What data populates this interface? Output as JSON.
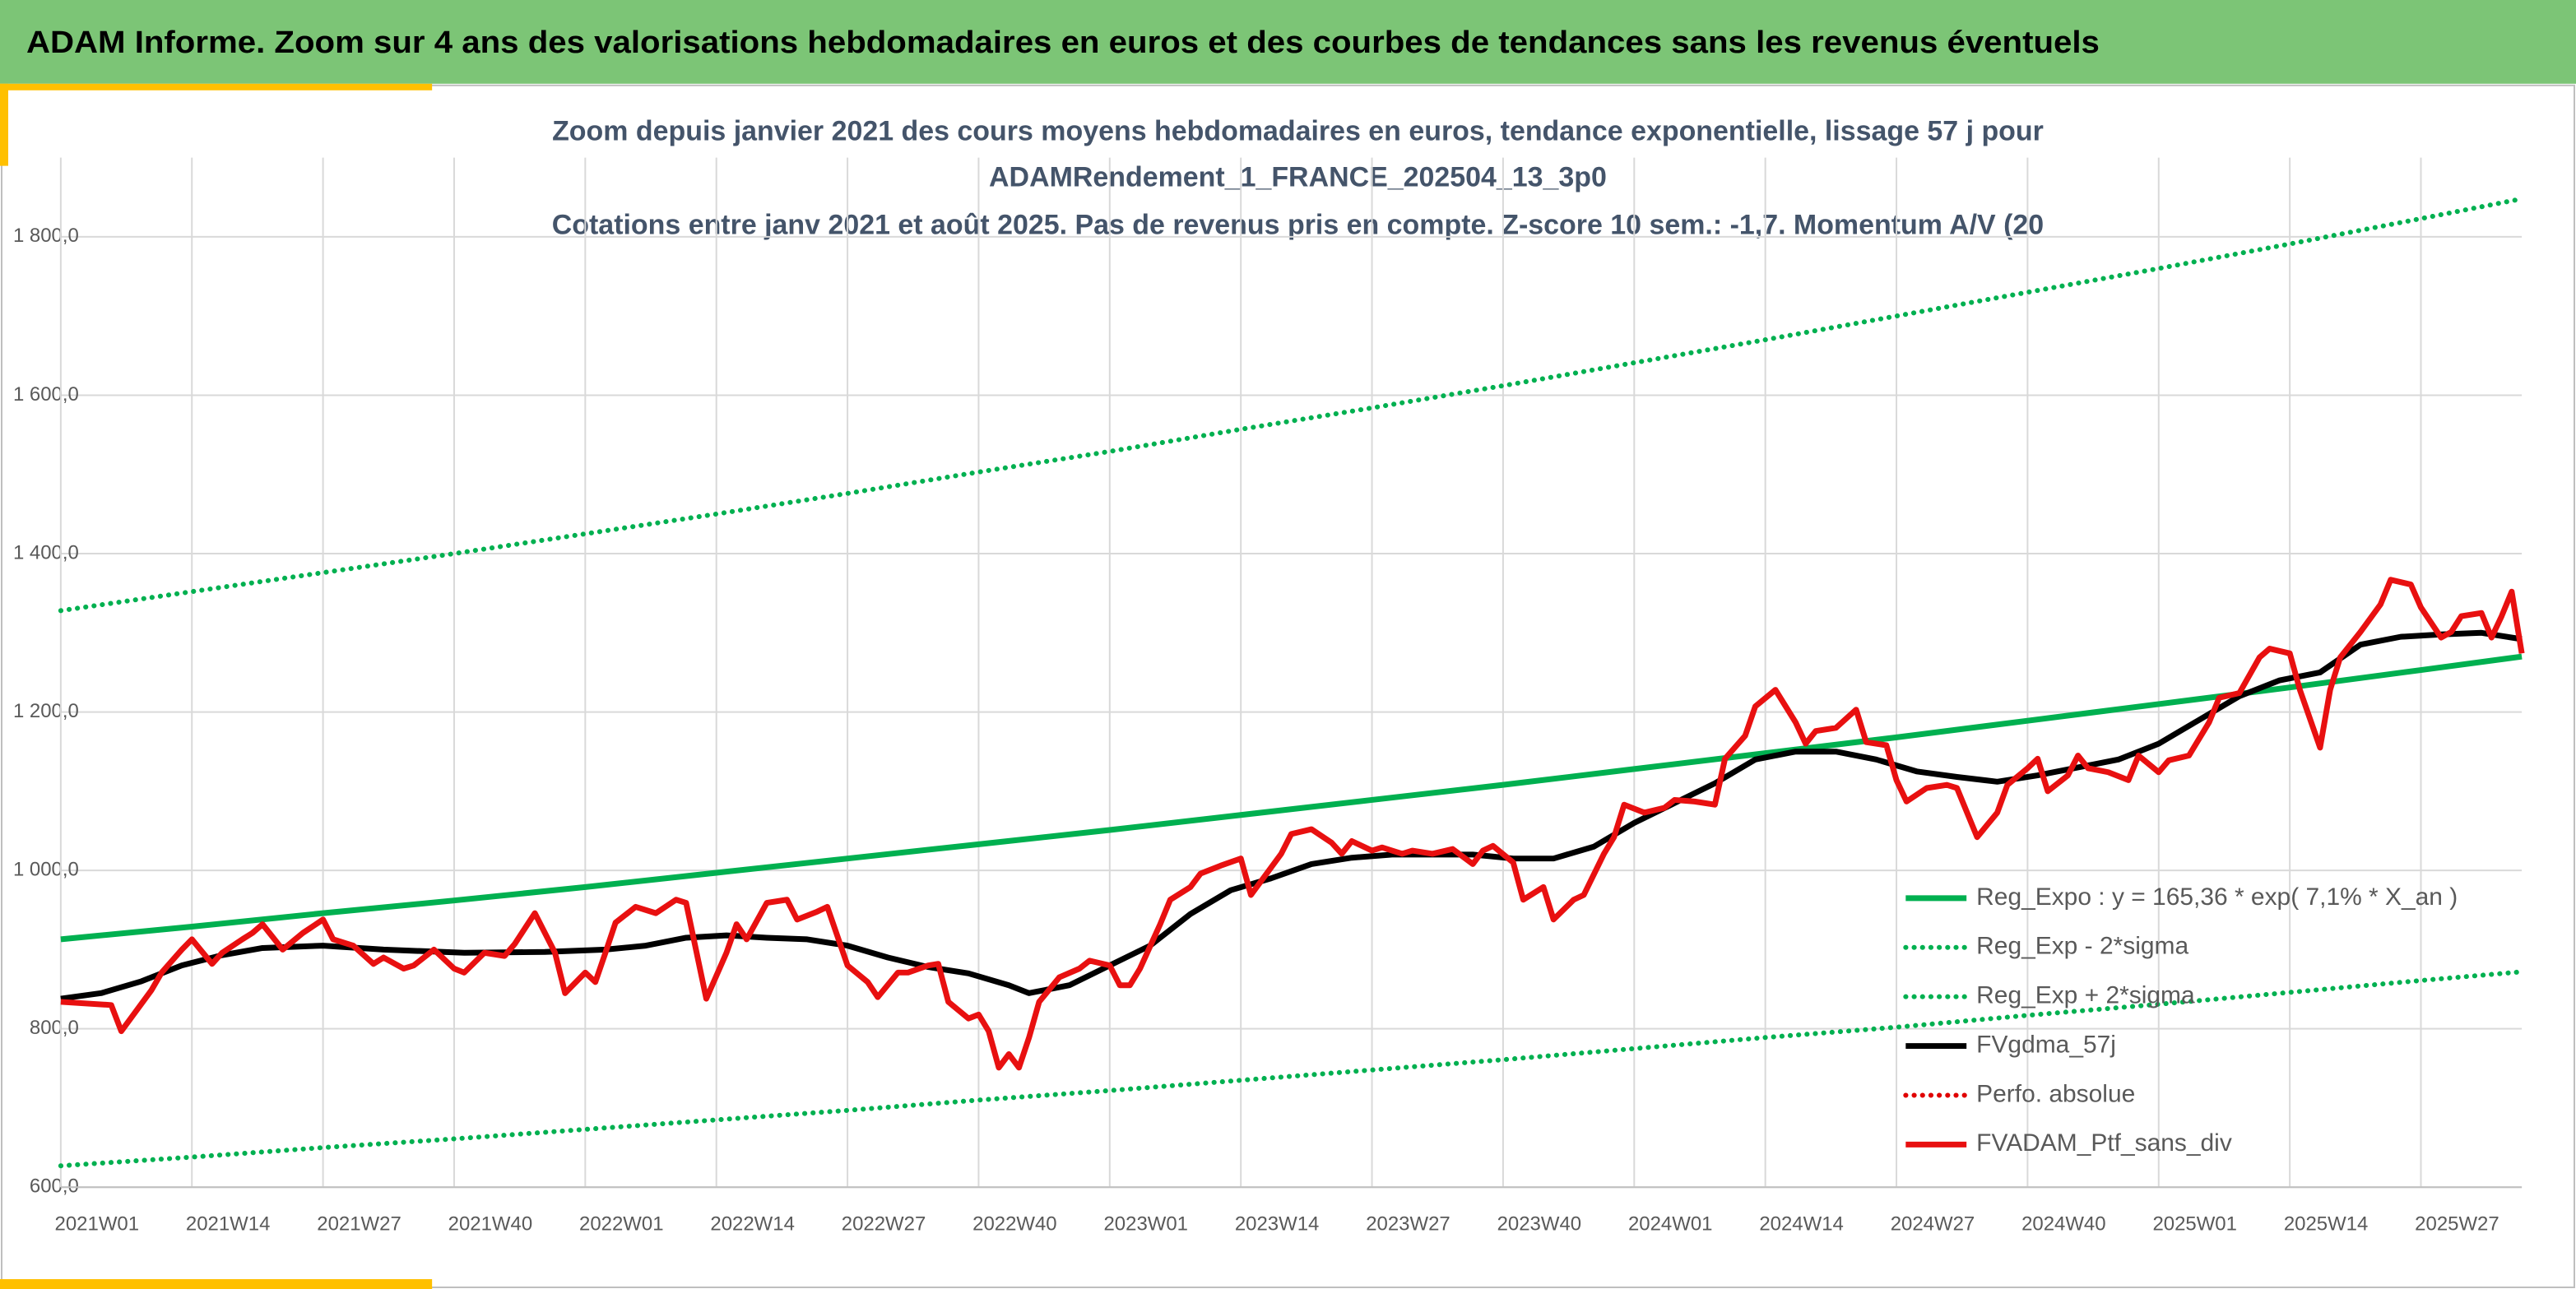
{
  "header": {
    "title": "ADAM Informe. Zoom sur 4 ans des valorisations hebdomadaires en euros et des courbes de tendances sans les revenus éventuels"
  },
  "chart_data": {
    "type": "line",
    "title": [
      "Zoom depuis janvier 2021 des cours moyens hebdomadaires en euros, tendance exponentielle, lissage 57 j pour",
      "ADAMRendement_1_FRANCE_202504_13_3p0",
      "Cotations entre janv 2021 et août 2025. Pas de revenus pris en compte. Z-score 10 sem.: -1,7. Momentum A/V (20"
    ],
    "xlim": [
      0,
      244
    ],
    "xticks": [
      {
        "value": 0,
        "label": "2021W01"
      },
      {
        "value": 13,
        "label": "2021W14"
      },
      {
        "value": 26,
        "label": "2021W27"
      },
      {
        "value": 39,
        "label": "2021W40"
      },
      {
        "value": 52,
        "label": "2022W01"
      },
      {
        "value": 65,
        "label": "2022W14"
      },
      {
        "value": 78,
        "label": "2022W27"
      },
      {
        "value": 91,
        "label": "2022W40"
      },
      {
        "value": 104,
        "label": "2023W01"
      },
      {
        "value": 117,
        "label": "2023W14"
      },
      {
        "value": 130,
        "label": "2023W27"
      },
      {
        "value": 143,
        "label": "2023W40"
      },
      {
        "value": 156,
        "label": "2024W01"
      },
      {
        "value": 169,
        "label": "2024W14"
      },
      {
        "value": 182,
        "label": "2024W27"
      },
      {
        "value": 195,
        "label": "2024W40"
      },
      {
        "value": 208,
        "label": "2025W01"
      },
      {
        "value": 221,
        "label": "2025W14"
      },
      {
        "value": 234,
        "label": "2025W27"
      }
    ],
    "ylim": [
      600,
      1900
    ],
    "yticks": [
      {
        "value": 600,
        "label": "600,0"
      },
      {
        "value": 800,
        "label": "800,0"
      },
      {
        "value": 1000,
        "label": "1 000,0"
      },
      {
        "value": 1200,
        "label": "1 200,0"
      },
      {
        "value": 1400,
        "label": "1 400,0"
      },
      {
        "value": 1600,
        "label": "1 600,0"
      },
      {
        "value": 1800,
        "label": "1 800,0"
      }
    ],
    "grid": true,
    "legend": "bottom-right",
    "series": [
      {
        "name": "Reg_Expo : y = 165,36 * exp( 7,1% *  X_an )",
        "color": "#00b050",
        "style": "solid",
        "x": [
          0,
          13,
          26,
          39,
          52,
          65,
          78,
          91,
          104,
          117,
          130,
          143,
          156,
          169,
          182,
          195,
          208,
          221,
          234,
          244
        ],
        "values": [
          913,
          929,
          946,
          962,
          979,
          997,
          1015,
          1033,
          1051,
          1070,
          1089,
          1108,
          1128,
          1148,
          1168,
          1189,
          1210,
          1231,
          1253,
          1270
        ]
      },
      {
        "name": "Reg_Exp - 2*sigma",
        "color": "#00b050",
        "style": "dotted",
        "x": [
          0,
          13,
          26,
          39,
          52,
          65,
          78,
          91,
          104,
          117,
          130,
          143,
          156,
          169,
          182,
          195,
          208,
          221,
          234,
          244
        ],
        "values": [
          627,
          638,
          650,
          661,
          673,
          685,
          697,
          710,
          722,
          735,
          748,
          761,
          775,
          789,
          802,
          817,
          831,
          846,
          861,
          872
        ]
      },
      {
        "name": "Reg_Exp + 2*sigma",
        "color": "#00b050",
        "style": "dotted",
        "x": [
          0,
          13,
          26,
          39,
          52,
          65,
          78,
          91,
          104,
          117,
          130,
          143,
          156,
          169,
          182,
          195,
          208,
          221,
          234,
          244
        ],
        "values": [
          1328,
          1352,
          1376,
          1400,
          1425,
          1450,
          1476,
          1503,
          1529,
          1557,
          1584,
          1612,
          1641,
          1670,
          1700,
          1730,
          1760,
          1791,
          1823,
          1848
        ]
      },
      {
        "name": "FVgdma_57j",
        "color": "#000000",
        "style": "solid",
        "x": [
          0,
          4,
          8,
          12,
          16,
          20,
          26,
          32,
          40,
          48,
          54,
          58,
          62,
          66,
          70,
          74,
          78,
          82,
          86,
          90,
          94,
          96,
          100,
          104,
          108,
          112,
          116,
          120,
          124,
          128,
          132,
          136,
          140,
          144,
          148,
          152,
          156,
          160,
          164,
          168,
          172,
          176,
          180,
          184,
          188,
          192,
          196,
          200,
          204,
          208,
          212,
          216,
          220,
          224,
          228,
          232,
          236,
          240,
          244
        ],
        "values": [
          838,
          845,
          860,
          880,
          893,
          902,
          905,
          900,
          896,
          897,
          900,
          905,
          915,
          918,
          915,
          913,
          905,
          890,
          878,
          870,
          855,
          845,
          855,
          880,
          905,
          945,
          975,
          990,
          1008,
          1016,
          1020,
          1020,
          1020,
          1015,
          1015,
          1030,
          1060,
          1085,
          1110,
          1140,
          1150,
          1150,
          1140,
          1125,
          1118,
          1112,
          1120,
          1130,
          1140,
          1160,
          1190,
          1220,
          1240,
          1250,
          1285,
          1295,
          1298,
          1300,
          1292
        ]
      },
      {
        "name": "Perfo. absolue",
        "color": "#e00000",
        "style": "dotted",
        "x": [],
        "values": []
      },
      {
        "name": "FVADAM_Ptf_sans_div",
        "color": "#e81010",
        "style": "solid",
        "x": [
          0,
          5,
          6,
          9,
          10,
          12,
          13,
          15,
          16,
          18,
          19,
          20,
          22,
          24,
          26,
          27,
          29,
          31,
          32,
          34,
          35,
          37,
          39,
          40,
          42,
          44,
          45,
          47,
          49,
          50,
          52,
          53,
          54,
          55,
          57,
          59,
          61,
          62,
          64,
          66,
          67,
          68,
          70,
          72,
          73,
          75,
          76,
          78,
          80,
          81,
          83,
          84,
          86,
          87,
          88,
          90,
          91,
          92,
          93,
          94,
          95,
          96,
          97,
          99,
          101,
          102,
          104,
          105,
          106,
          107,
          109,
          110,
          112,
          113,
          115,
          117,
          118,
          121,
          122,
          124,
          126,
          127,
          128,
          130,
          131,
          133,
          134,
          136,
          138,
          140,
          141,
          142,
          144,
          145,
          147,
          148,
          150,
          151,
          153,
          154,
          155,
          157,
          159,
          160,
          162,
          164,
          165,
          167,
          168,
          170,
          172,
          173,
          174,
          176,
          178,
          179,
          181,
          182,
          183,
          185,
          187,
          188,
          190,
          192,
          193,
          195,
          196,
          197,
          199,
          200,
          201,
          203,
          205,
          206,
          208,
          209,
          211,
          213,
          214,
          216,
          218,
          219,
          221,
          222,
          224,
          225,
          226,
          228,
          230,
          231,
          233,
          234,
          236,
          237,
          238,
          240,
          241,
          242,
          243,
          244
        ],
        "values": [
          834,
          830,
          797,
          849,
          871,
          900,
          913,
          882,
          896,
          913,
          921,
          932,
          900,
          921,
          938,
          913,
          905,
          882,
          890,
          876,
          880,
          900,
          876,
          871,
          896,
          892,
          907,
          946,
          896,
          845,
          871,
          859,
          896,
          934,
          954,
          946,
          963,
          959,
          838,
          896,
          932,
          913,
          959,
          963,
          938,
          948,
          954,
          880,
          859,
          840,
          871,
          871,
          880,
          882,
          834,
          813,
          818,
          797,
          751,
          768,
          751,
          789,
          834,
          865,
          876,
          886,
          880,
          855,
          855,
          876,
          932,
          963,
          979,
          996,
          1006,
          1015,
          969,
          1021,
          1046,
          1052,
          1035,
          1021,
          1037,
          1025,
          1029,
          1021,
          1025,
          1021,
          1027,
          1008,
          1025,
          1031,
          1010,
          963,
          979,
          938,
          963,
          969,
          1021,
          1042,
          1083,
          1073,
          1079,
          1089,
          1087,
          1083,
          1141,
          1170,
          1207,
          1228,
          1187,
          1160,
          1176,
          1180,
          1203,
          1162,
          1158,
          1114,
          1087,
          1104,
          1108,
          1104,
          1042,
          1073,
          1108,
          1129,
          1141,
          1100,
          1120,
          1145,
          1129,
          1124,
          1114,
          1145,
          1124,
          1139,
          1145,
          1187,
          1218,
          1224,
          1269,
          1280,
          1274,
          1228,
          1155,
          1228,
          1269,
          1301,
          1336,
          1367,
          1361,
          1332,
          1294,
          1301,
          1321,
          1325,
          1294,
          1321,
          1352,
          1274
        ]
      }
    ]
  }
}
